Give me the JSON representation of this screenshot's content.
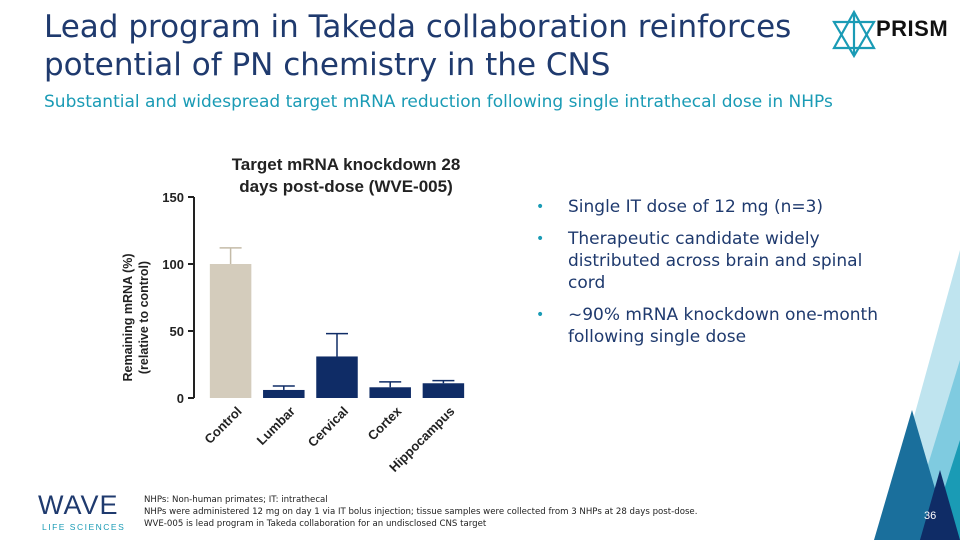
{
  "slide": {
    "title": "Lead program in Takeda collaboration reinforces potential of PN chemistry in the CNS",
    "subtitle": "Substantial and widespread target mRNA reduction following single intrathecal dose in NHPs",
    "page_number": "36"
  },
  "logos": {
    "prism_text": "PRISM",
    "wave_text": "WAVE",
    "wave_subtext": "LIFE SCIENCES"
  },
  "bullets": [
    "Single IT dose of 12 mg (n=3)",
    "Therapeutic candidate widely distributed across brain and spinal cord",
    "~90% mRNA knockdown one-month following single dose"
  ],
  "footnotes": [
    "NHPs: Non-human primates; IT: intrathecal",
    "NHPs were administered 12 mg on day 1 via IT bolus injection; tissue samples were collected from 3 NHPs at 28 days post-dose.",
    "WVE-005 is lead program in Takeda collaboration for an undisclosed CNS target"
  ],
  "colors": {
    "control": "#d4ccbc",
    "treated": "#0f2c66",
    "title": "#1f3a6e",
    "accent": "#1a9bb5"
  },
  "chart_data": {
    "type": "bar",
    "title_lines": [
      "Target mRNA knockdown 28",
      "days post-dose (WVE-005)"
    ],
    "ylabel_lines": [
      "Remaining mRNA (%)",
      "(relative to control)"
    ],
    "xlabel": "",
    "ylim": [
      0,
      150
    ],
    "yticks": [
      0,
      50,
      100,
      150
    ],
    "categories": [
      "Control",
      "Lumbar",
      "Cervical",
      "Cortex",
      "Hippocampus"
    ],
    "values": [
      100,
      6,
      31,
      8,
      11
    ],
    "error_upper": [
      112,
      9,
      48,
      12,
      13
    ],
    "grid": false
  }
}
